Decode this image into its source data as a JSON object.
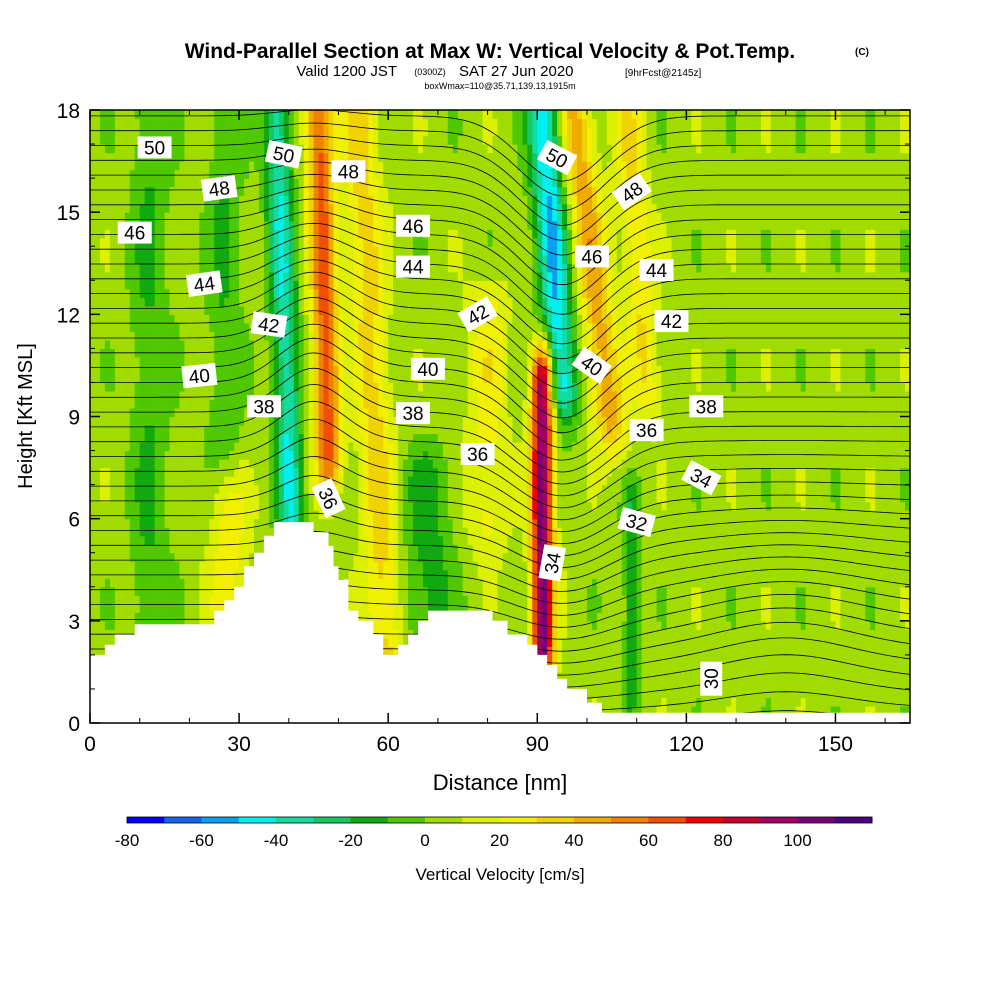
{
  "title": {
    "main": "Wind-Parallel Section at Max W: Vertical Velocity & Pot.Temp.",
    "copyright": "(C)",
    "valid_prefix": "Valid 1200 JST",
    "valid_utc": "(0300Z)",
    "valid_date": "SAT 27 Jun 2020",
    "forecast": "[9hrFcst@2145z]",
    "box_info": "boxWmax=110@35.71,139.13,1915m"
  },
  "chart_data": {
    "type": "heatmap",
    "xlabel": "Distance [nm]",
    "ylabel": "Height [Kft MSL]",
    "xlim": [
      0,
      165
    ],
    "ylim": [
      0,
      18
    ],
    "x_ticks": [
      0,
      30,
      60,
      90,
      120,
      150
    ],
    "y_ticks": [
      0,
      3,
      6,
      9,
      12,
      15,
      18
    ],
    "colorbar": {
      "label": "Vertical Velocity [cm/s]",
      "ticks": [
        -80,
        -60,
        -40,
        -20,
        0,
        20,
        40,
        60,
        80,
        100
      ],
      "levels": [
        -80,
        -70,
        -60,
        -50,
        -40,
        -30,
        -20,
        -10,
        0,
        10,
        20,
        30,
        40,
        50,
        60,
        70,
        80,
        90,
        100,
        110
      ],
      "colors": [
        "#0000ff",
        "#1464f0",
        "#0aa0f0",
        "#00f0f0",
        "#14dca0",
        "#14c864",
        "#10aa10",
        "#50c800",
        "#a0dc00",
        "#dcf000",
        "#f0f000",
        "#f0d200",
        "#f0aa00",
        "#f08200",
        "#f05000",
        "#f00000",
        "#c80032",
        "#a00064",
        "#780078",
        "#4b0082"
      ]
    },
    "background_w": 5,
    "updrafts": [
      {
        "x": 47,
        "y0": 8,
        "y1": 18,
        "w": 60,
        "halfwidth": 2.6,
        "tilt": -0.2
      },
      {
        "x": 57,
        "y0": 1,
        "y1": 18,
        "w": 30,
        "halfwidth": 3.5,
        "tilt": -0.35
      },
      {
        "x": 91,
        "y0": 2.2,
        "y1": 10,
        "w": 100,
        "halfwidth": 2.2,
        "tilt": 0
      },
      {
        "x": 101,
        "y0": 9,
        "y1": 18,
        "w": 40,
        "halfwidth": 3.4,
        "tilt": -0.8
      },
      {
        "x": 110,
        "y0": 10,
        "y1": 18,
        "w": 25,
        "halfwidth": 3,
        "tilt": -0.5
      },
      {
        "x": 80,
        "y0": 6,
        "y1": 12,
        "w": 20,
        "halfwidth": 4,
        "tilt": 0
      },
      {
        "x": 28,
        "y0": 3,
        "y1": 6,
        "w": 20,
        "halfwidth": 4,
        "tilt": 0
      }
    ],
    "downdrafts": [
      {
        "x": 39,
        "y0": 6,
        "y1": 18,
        "w": -45,
        "halfwidth": 2.6,
        "tilt": -0.25
      },
      {
        "x": 93,
        "y0": 10,
        "y1": 18,
        "w": -55,
        "halfwidth": 3.2,
        "tilt": -0.45
      },
      {
        "x": 12,
        "y0": 3,
        "y1": 18,
        "w": -15,
        "halfwidth": 4,
        "tilt": 0
      },
      {
        "x": 68,
        "y0": 3,
        "y1": 7,
        "w": -20,
        "halfwidth": 5,
        "tilt": 0
      },
      {
        "x": 109,
        "y0": 1.5,
        "y1": 6,
        "w": -25,
        "halfwidth": 1.6,
        "tilt": 0
      },
      {
        "x": 27,
        "y0": 9,
        "y1": 18,
        "w": -15,
        "halfwidth": 3.5,
        "tilt": 0
      }
    ],
    "terrain": [
      [
        0,
        2
      ],
      [
        3,
        2
      ],
      [
        3,
        2.3
      ],
      [
        5,
        2.3
      ],
      [
        5,
        2.6
      ],
      [
        9,
        2.6
      ],
      [
        9,
        2.9
      ],
      [
        25,
        2.9
      ],
      [
        25,
        3.3
      ],
      [
        27,
        3.3
      ],
      [
        27,
        3.6
      ],
      [
        29,
        3.6
      ],
      [
        29,
        4
      ],
      [
        31,
        4
      ],
      [
        31,
        4.6
      ],
      [
        33,
        4.6
      ],
      [
        33,
        5
      ],
      [
        35,
        5
      ],
      [
        35,
        5.5
      ],
      [
        37,
        5.5
      ],
      [
        37,
        5.9
      ],
      [
        45,
        5.9
      ],
      [
        45,
        5.6
      ],
      [
        48,
        5.6
      ],
      [
        48,
        5.2
      ],
      [
        49,
        5.2
      ],
      [
        49,
        4.6
      ],
      [
        50,
        4.6
      ],
      [
        50,
        4.2
      ],
      [
        52,
        4.2
      ],
      [
        52,
        3.3
      ],
      [
        54,
        3.3
      ],
      [
        54,
        3
      ],
      [
        57,
        3
      ],
      [
        57,
        2.6
      ],
      [
        59,
        2.6
      ],
      [
        59,
        2
      ],
      [
        62,
        2
      ],
      [
        62,
        2.3
      ],
      [
        64,
        2.3
      ],
      [
        64,
        2.6
      ],
      [
        66,
        2.6
      ],
      [
        66,
        3
      ],
      [
        68,
        3
      ],
      [
        68,
        3.3
      ],
      [
        81,
        3.3
      ],
      [
        81,
        3
      ],
      [
        84,
        3
      ],
      [
        84,
        2.6
      ],
      [
        88,
        2.6
      ],
      [
        88,
        2.3
      ],
      [
        90,
        2.3
      ],
      [
        90,
        2
      ],
      [
        92,
        2
      ],
      [
        92,
        1.7
      ],
      [
        94,
        1.7
      ],
      [
        94,
        1.3
      ],
      [
        96,
        1.3
      ],
      [
        96,
        1
      ],
      [
        100,
        1
      ],
      [
        100,
        0.6
      ],
      [
        103,
        0.6
      ],
      [
        103,
        0.3
      ],
      [
        165,
        0.3
      ]
    ],
    "theta_contours": {
      "base_levels": [
        30,
        31,
        32,
        33,
        34,
        35,
        36,
        37,
        38,
        39,
        40,
        41,
        42,
        43,
        44,
        45,
        46,
        47,
        48,
        49,
        50
      ],
      "labels": [
        {
          "text": "50",
          "x": 13,
          "y": 16.9,
          "rot": 0
        },
        {
          "text": "50",
          "x": 39,
          "y": 16.7,
          "rot": 12
        },
        {
          "text": "48",
          "x": 52,
          "y": 16.2,
          "rot": 0
        },
        {
          "text": "48",
          "x": 26,
          "y": 15.7,
          "rot": -8
        },
        {
          "text": "46",
          "x": 9,
          "y": 14.4,
          "rot": 0
        },
        {
          "text": "46",
          "x": 65,
          "y": 14.6,
          "rot": 0
        },
        {
          "text": "44",
          "x": 23,
          "y": 12.9,
          "rot": -8
        },
        {
          "text": "44",
          "x": 65,
          "y": 13.4,
          "rot": 0
        },
        {
          "text": "42",
          "x": 36,
          "y": 11.7,
          "rot": 8
        },
        {
          "text": "42",
          "x": 78,
          "y": 12.0,
          "rot": -30
        },
        {
          "text": "40",
          "x": 22,
          "y": 10.2,
          "rot": -6
        },
        {
          "text": "40",
          "x": 68,
          "y": 10.4,
          "rot": 0
        },
        {
          "text": "38",
          "x": 35,
          "y": 9.3,
          "rot": 0
        },
        {
          "text": "38",
          "x": 65,
          "y": 9.1,
          "rot": 0
        },
        {
          "text": "36",
          "x": 78,
          "y": 7.9,
          "rot": 0
        },
        {
          "text": "36",
          "x": 48,
          "y": 6.6,
          "rot": 65
        },
        {
          "text": "34",
          "x": 93,
          "y": 4.7,
          "rot": -80
        },
        {
          "text": "50",
          "x": 94,
          "y": 16.6,
          "rot": 28
        },
        {
          "text": "48",
          "x": 109,
          "y": 15.6,
          "rot": -35
        },
        {
          "text": "46",
          "x": 101,
          "y": 13.7,
          "rot": 0
        },
        {
          "text": "44",
          "x": 114,
          "y": 13.3,
          "rot": 0
        },
        {
          "text": "42",
          "x": 117,
          "y": 11.8,
          "rot": 0
        },
        {
          "text": "40",
          "x": 101,
          "y": 10.5,
          "rot": 35
        },
        {
          "text": "38",
          "x": 124,
          "y": 9.3,
          "rot": 0
        },
        {
          "text": "36",
          "x": 112,
          "y": 8.6,
          "rot": 0
        },
        {
          "text": "34",
          "x": 123,
          "y": 7.2,
          "rot": 28
        },
        {
          "text": "32",
          "x": 110,
          "y": 5.9,
          "rot": 15
        },
        {
          "text": "30",
          "x": 125,
          "y": 1.3,
          "rot": -90
        }
      ]
    }
  }
}
